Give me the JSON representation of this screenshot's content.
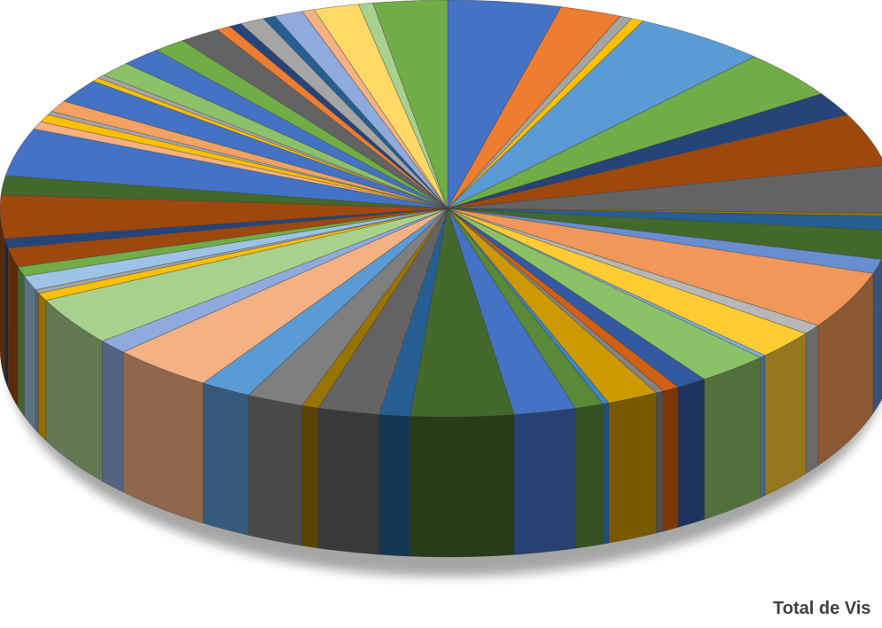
{
  "chart_data": {
    "type": "pie",
    "style": "3d",
    "title": "",
    "caption": "Total de Vis",
    "start_angle_deg": -90,
    "values": [
      5.5,
      3,
      0.6,
      0.6,
      6.5,
      5,
      2.5,
      5.5,
      5,
      0.3,
      1.5,
      3,
      1.5,
      6,
      1,
      3,
      0.3,
      3.5,
      1.5,
      0.8,
      0.4,
      2.5,
      0.3,
      1.4,
      3,
      5,
      1.5,
      3,
      0.8,
      2.8,
      2.5,
      5,
      1.5,
      5,
      0.8,
      0.4,
      1.5,
      1,
      2,
      1,
      4.5,
      2,
      5,
      0.8,
      0.8,
      0.4,
      1.2,
      2.5,
      0.4,
      0.4,
      1.6,
      2,
      1.6,
      2,
      0.7,
      0.6,
      1.2,
      0.6,
      1.4,
      0.6,
      2.2,
      0.7,
      3.6
    ],
    "colors": [
      "#4472c4",
      "#ed7d31",
      "#a5a5a5",
      "#ffc000",
      "#5b9bd5",
      "#70ad47",
      "#264478",
      "#9e480e",
      "#636363",
      "#997300",
      "#255e91",
      "#43682b",
      "#698ed0",
      "#f1975a",
      "#b7b7b7",
      "#ffcd33",
      "#7cafdd",
      "#8cc168",
      "#335aa1",
      "#d26012",
      "#848484",
      "#cc9a00",
      "#3a87ca",
      "#5a8a39",
      "#4472c4",
      "#43682b",
      "#255e91",
      "#636363",
      "#997300",
      "#7f7f7f",
      "#5b9bd5",
      "#f4b183",
      "#8faadc",
      "#a9d18e",
      "#ffc000",
      "#a5a5a5",
      "#9dc3e6",
      "#70ad47",
      "#9e480e",
      "#264478",
      "#9e480e",
      "#43682b",
      "#4472c4",
      "#f4b183",
      "#ffc000",
      "#a5a5a5",
      "#f4a261",
      "#4472c4",
      "#ffc000",
      "#a5a5a5",
      "#8cc168",
      "#4472c4",
      "#70ad47",
      "#636363",
      "#ed7d31",
      "#264478",
      "#a5a5a5",
      "#255e91",
      "#8faadc",
      "#f4b183",
      "#ffd966",
      "#a9d18e",
      "#70ad47"
    ]
  }
}
